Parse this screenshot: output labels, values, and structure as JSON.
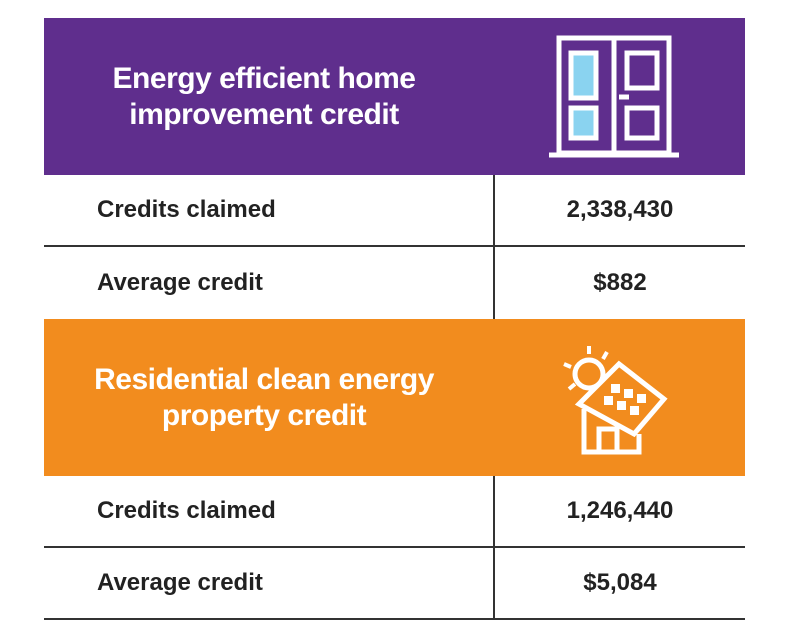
{
  "sections": [
    {
      "title": "Energy efficient home improvement credit",
      "color": "#5f2e8d",
      "rows": [
        [
          "Credits claimed",
          "2,338,430"
        ],
        [
          "Average credit",
          "$882"
        ]
      ]
    },
    {
      "title": "Residential clean energy property credit",
      "color": "#f28c1e",
      "rows": [
        [
          "Credits claimed",
          "1,246,440"
        ],
        [
          "Average credit",
          "$5,084"
        ]
      ]
    }
  ]
}
